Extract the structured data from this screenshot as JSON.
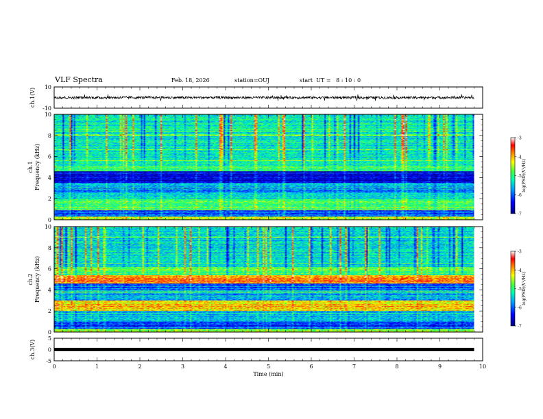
{
  "header": {
    "title": "VLF Spectra",
    "date": "Feb. 18, 2026",
    "station": "station=OUJ",
    "start_ut": "start  UT =   8 : 10 : 0"
  },
  "colors": {
    "waveform": "#000000",
    "frame": "#000000",
    "colormap": [
      "#000080",
      "#0000ff",
      "#00a0ff",
      "#00ffb0",
      "#40ff40",
      "#ffff00",
      "#ff8000",
      "#ff0000",
      "#ffffff"
    ]
  },
  "chart_data": [
    {
      "type": "line",
      "panel": "ch1-waveform",
      "ylabel": "ch.1(V)",
      "ylim": [
        -10,
        10
      ],
      "yticks": [
        "10",
        "-10"
      ],
      "xlim": [
        0,
        10
      ],
      "data_xmax": 9.8,
      "baseline": 0,
      "amplitude_range": [
        -3,
        3
      ]
    },
    {
      "type": "heatmap",
      "panel": "ch1-spectrogram",
      "ylabel_line1": "ch.1",
      "ylabel_line2": "Frequency (kHz)",
      "ylim": [
        0,
        10
      ],
      "yticks": [
        "0",
        "2",
        "4",
        "6",
        "8",
        "10"
      ],
      "xlim": [
        0,
        10
      ],
      "data_xmax": 9.8,
      "colorbar": {
        "label": "log(PSD)(V²/Hz)",
        "ticks": [
          "-3",
          "-4",
          "-5",
          "-6",
          "-7"
        ],
        "range": [
          -7,
          -3
        ]
      },
      "bands": [
        {
          "f": [
            0.0,
            0.3
          ],
          "level": -4.5
        },
        {
          "f": [
            0.3,
            0.9
          ],
          "level": -6.0
        },
        {
          "f": [
            0.9,
            1.5
          ],
          "level": -5.0
        },
        {
          "f": [
            1.5,
            2.0
          ],
          "level": -4.8
        },
        {
          "f": [
            2.0,
            2.6
          ],
          "level": -5.4
        },
        {
          "f": [
            2.6,
            3.5
          ],
          "level": -5.8
        },
        {
          "f": [
            3.5,
            4.6
          ],
          "level": -6.6
        },
        {
          "f": [
            4.6,
            5.1
          ],
          "level": -5.0
        },
        {
          "f": [
            5.1,
            10.0
          ],
          "level": -5.3
        }
      ]
    },
    {
      "type": "heatmap",
      "panel": "ch2-spectrogram",
      "ylabel_line1": "ch.2",
      "ylabel_line2": "Frequency (kHz)",
      "ylim": [
        0,
        10
      ],
      "yticks": [
        "0",
        "2",
        "4",
        "6",
        "8",
        "10"
      ],
      "xlim": [
        0,
        10
      ],
      "data_xmax": 9.8,
      "colorbar": {
        "label": "log(PSD)(V²/Hz)",
        "ticks": [
          "-3",
          "-4",
          "-5",
          "-6",
          "-7"
        ],
        "range": [
          -7,
          -3
        ]
      },
      "bands": [
        {
          "f": [
            0.0,
            0.3
          ],
          "level": -4.6
        },
        {
          "f": [
            0.3,
            1.0
          ],
          "level": -6.2
        },
        {
          "f": [
            1.0,
            2.0
          ],
          "level": -5.6
        },
        {
          "f": [
            2.0,
            3.0
          ],
          "level": -4.2
        },
        {
          "f": [
            3.0,
            4.0
          ],
          "level": -5.6
        },
        {
          "f": [
            4.0,
            4.6
          ],
          "level": -6.0
        },
        {
          "f": [
            4.6,
            5.4
          ],
          "level": -3.8
        },
        {
          "f": [
            5.4,
            6.2
          ],
          "level": -4.9
        },
        {
          "f": [
            6.2,
            10.0
          ],
          "level": -5.4
        }
      ]
    },
    {
      "type": "line",
      "panel": "ch3-waveform",
      "ylabel": "ch.3(V)",
      "ylim": [
        -5,
        5
      ],
      "yticks": [
        "5",
        "0",
        "-5"
      ],
      "xlim": [
        0,
        10
      ],
      "data_xmax": 9.8,
      "baseline": 0,
      "xlabel": "Time (min)",
      "xticks": [
        "0",
        "1",
        "2",
        "3",
        "4",
        "5",
        "6",
        "7",
        "8",
        "9",
        "10"
      ]
    }
  ]
}
